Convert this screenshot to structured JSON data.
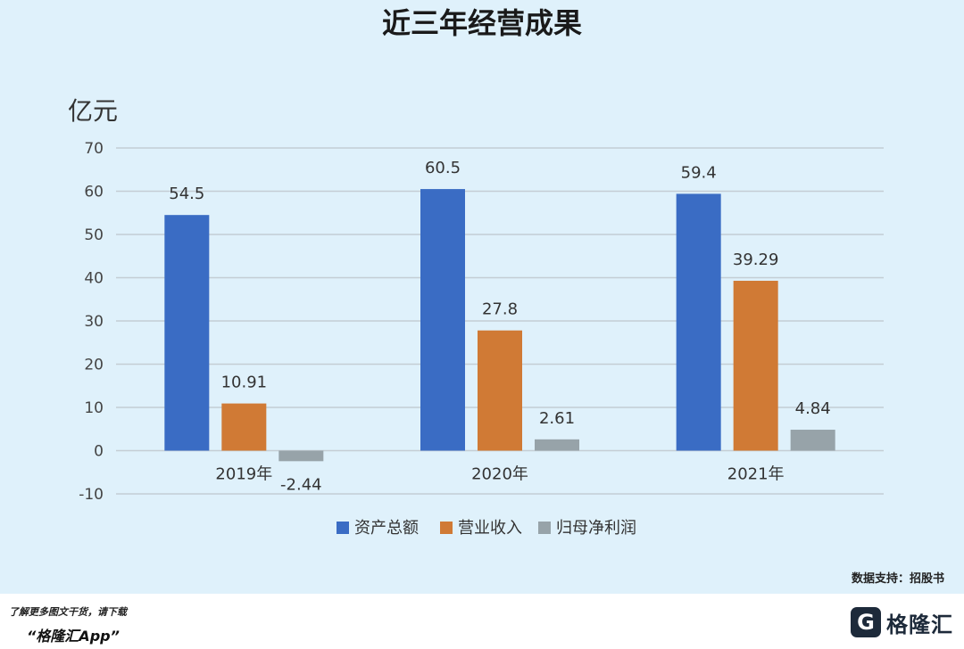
{
  "chart_data": {
    "type": "bar",
    "title": "近三年经营成果",
    "ylabel": "亿元",
    "categories": [
      "2019年",
      "2020年",
      "2021年"
    ],
    "yticks": [
      -10,
      0,
      10,
      20,
      30,
      40,
      50,
      60,
      70
    ],
    "ylim": [
      -10,
      70
    ],
    "grid": true,
    "legend_position": "bottom",
    "series": [
      {
        "name": "资产总额",
        "color": "#3a6cc4",
        "values": [
          54.5,
          60.5,
          59.4
        ],
        "labels": [
          "54.5",
          "60.5",
          "59.4"
        ]
      },
      {
        "name": "营业收入",
        "color": "#d07a35",
        "values": [
          10.91,
          27.8,
          39.29
        ],
        "labels": [
          "10.91",
          "27.8",
          "39.29"
        ]
      },
      {
        "name": "归母净利润",
        "color": "#97a3a9",
        "values": [
          -2.44,
          2.61,
          4.84
        ],
        "labels": [
          "-2.44",
          "2.61",
          "4.84"
        ]
      }
    ]
  },
  "source": "数据支持：招股书",
  "footer": {
    "note": "了解更多图文干货，请下载",
    "app": "“格隆汇App”",
    "logo_name": "格隆汇",
    "logo_mark": "G"
  }
}
